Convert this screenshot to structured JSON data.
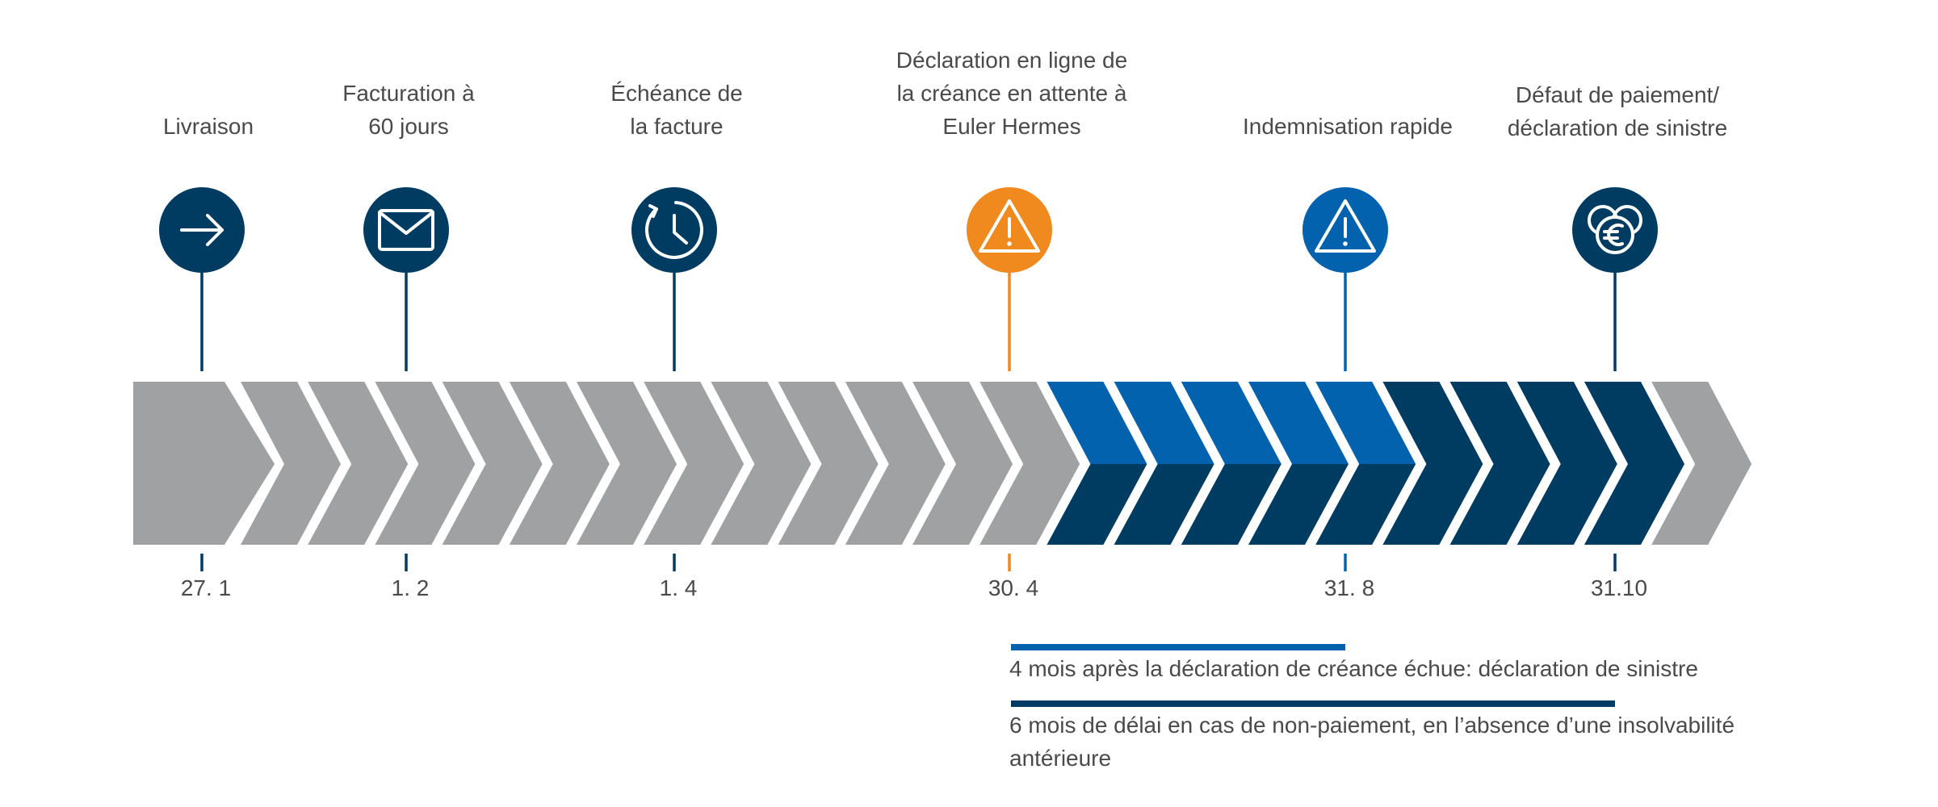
{
  "colors": {
    "grey": "#a0a1a3",
    "light_blue": "#0262ad",
    "dark_blue": "#003b62",
    "orange": "#f0891e",
    "text": "#4a4a4a"
  },
  "milestones": [
    {
      "label_lines": [
        "Livraison"
      ],
      "date": "27. 1",
      "icon": "arrow-right-icon",
      "color": "#003b62"
    },
    {
      "label_lines": [
        "Facturation à",
        "60 jours"
      ],
      "date": "1. 2",
      "icon": "envelope-icon",
      "color": "#003b62"
    },
    {
      "label_lines": [
        "Échéance de",
        "la facture"
      ],
      "date": "1. 4",
      "icon": "clock-icon",
      "color": "#003b62"
    },
    {
      "label_lines": [
        "Déclaration en ligne de",
        "la créance en attente à",
        "Euler Hermes"
      ],
      "date": "30. 4",
      "icon": "warning-icon",
      "color": "#f0891e"
    },
    {
      "label_lines": [
        "Indemnisation rapide"
      ],
      "date": "31. 8",
      "icon": "warning-icon",
      "color": "#0262ad"
    },
    {
      "label_lines": [
        "Défaut de paiement/",
        "déclaration de sinistre"
      ],
      "date": "31.10",
      "icon": "euro-coins-icon",
      "color": "#003b62"
    }
  ],
  "notes": [
    {
      "lines": [
        "4 mois après la déclaration de créance échue: déclaration de sinistre"
      ],
      "color": "#0262ad"
    },
    {
      "lines": [
        "6 mois de délai en cas de non-paiement, en l’absence d’une insolvabilité",
        "antérieure"
      ],
      "color": "#003b62"
    }
  ]
}
